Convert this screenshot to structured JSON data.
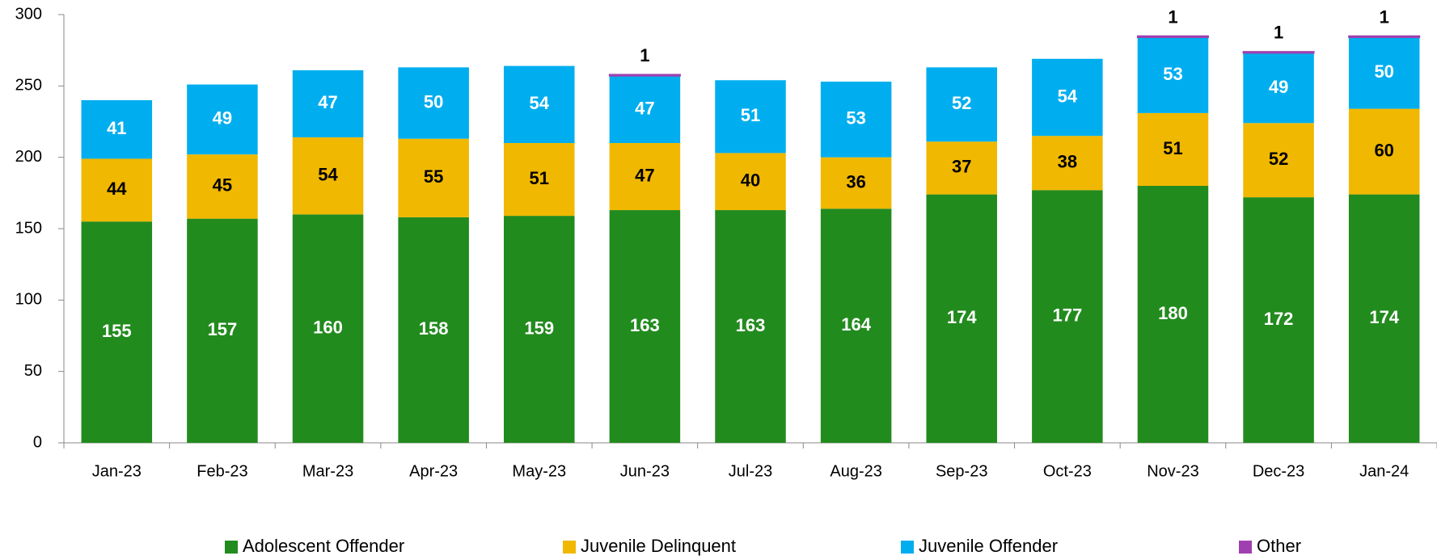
{
  "chart_data": {
    "type": "stacked_bar",
    "categories": [
      "Jan-23",
      "Feb-23",
      "Mar-23",
      "Apr-23",
      "May-23",
      "Jun-23",
      "Jul-23",
      "Aug-23",
      "Sep-23",
      "Oct-23",
      "Nov-23",
      "Dec-23",
      "Jan-24"
    ],
    "series": [
      {
        "name": "Adolescent Offender",
        "color": "#228b1e",
        "label_color": "#ffffff",
        "values": [
          155,
          157,
          160,
          158,
          159,
          163,
          163,
          164,
          174,
          177,
          180,
          172,
          174
        ]
      },
      {
        "name": "Juvenile Delinquent",
        "color": "#f0b800",
        "label_color": "#000000",
        "values": [
          44,
          45,
          54,
          55,
          51,
          47,
          40,
          36,
          37,
          38,
          51,
          52,
          60
        ]
      },
      {
        "name": "Juvenile Offender",
        "color": "#00aeef",
        "label_color": "#ffffff",
        "values": [
          41,
          49,
          47,
          50,
          54,
          47,
          51,
          53,
          52,
          54,
          53,
          49,
          50
        ]
      },
      {
        "name": "Other",
        "color": "#a040b0",
        "label_color": "#000000",
        "values": [
          null,
          null,
          null,
          null,
          null,
          1,
          null,
          null,
          null,
          null,
          1,
          1,
          1
        ]
      }
    ],
    "ylim": [
      0,
      300
    ],
    "yticks": [
      0,
      50,
      100,
      150,
      200,
      250,
      300
    ],
    "legend": "bottom"
  }
}
